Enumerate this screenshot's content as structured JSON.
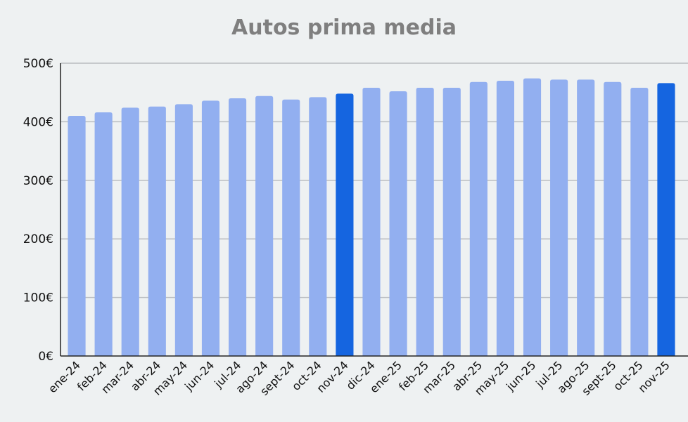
{
  "chart_data": {
    "type": "bar",
    "title": "Autos prima media",
    "xlabel": "",
    "ylabel": "",
    "ylim": [
      0,
      500
    ],
    "yticks": [
      "0€",
      "100€",
      "200€",
      "300€",
      "400€",
      "500€"
    ],
    "grid": true,
    "categories": [
      "ene-24",
      "feb-24",
      "mar-24",
      "abr-24",
      "may-24",
      "jun-24",
      "jul-24",
      "ago-24",
      "sept-24",
      "oct-24",
      "nov-24",
      "dic-24",
      "ene-25",
      "feb-25",
      "mar-25",
      "abr-25",
      "may-25",
      "jun-25",
      "jul-25",
      "ago-25",
      "sept-25",
      "oct-25",
      "nov-25"
    ],
    "values": [
      410,
      416,
      424,
      426,
      430,
      436,
      440,
      444,
      438,
      442,
      448,
      458,
      452,
      458,
      458,
      468,
      470,
      474,
      472,
      472,
      468,
      458,
      466
    ],
    "highlighted": [
      "nov-24",
      "nov-25"
    ],
    "colors": {
      "bar": "#92aff0",
      "highlight": "#1565e0",
      "grid": "#b9bcc0",
      "axis": "#222222"
    }
  }
}
